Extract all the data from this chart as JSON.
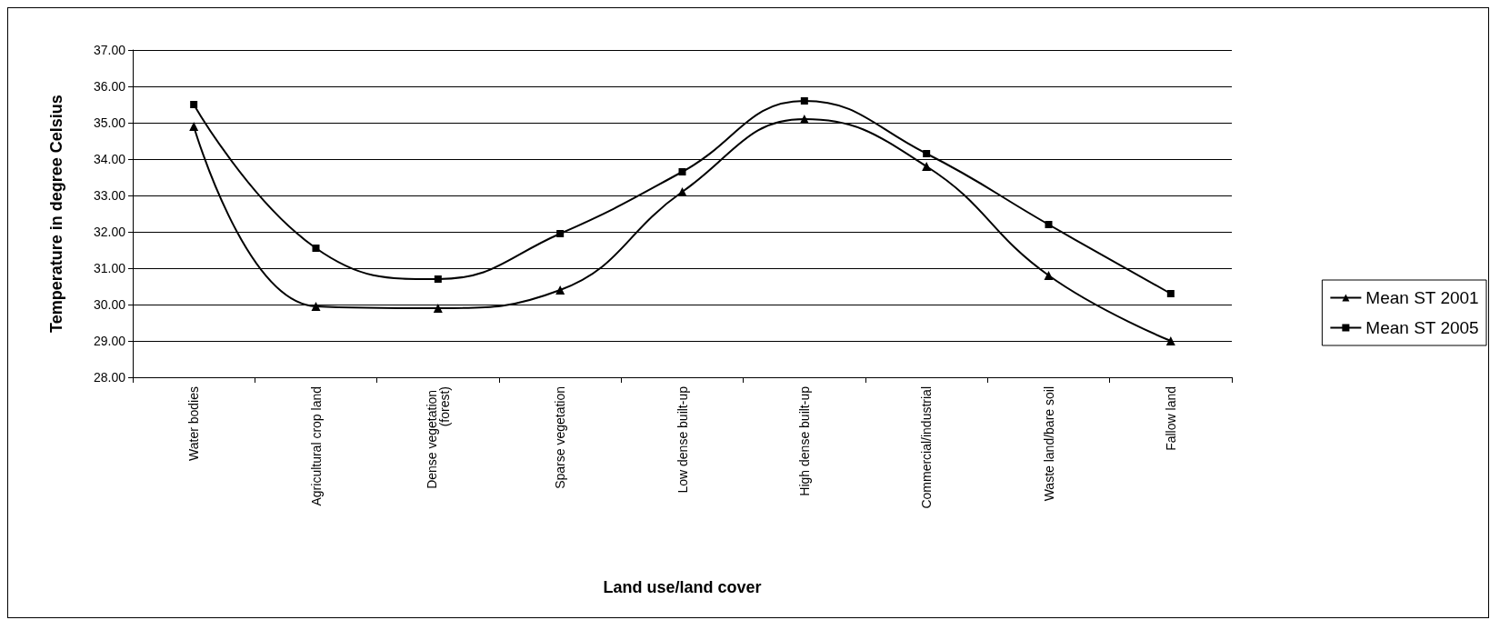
{
  "chart_data": {
    "type": "line",
    "xlabel": "Land use/land cover",
    "ylabel": "Temperature in degree Celsius",
    "categories": [
      "Water bodies",
      "Agricultural crop land",
      "Dense vegetation (forest)",
      "Sparse vegetation",
      "Low dense built-up",
      "High dense built-up",
      "Commercial/industrial",
      "Waste land/bare soil",
      "Fallow land"
    ],
    "series": [
      {
        "name": "Mean ST 2001",
        "color": "#000000",
        "marker": "triangle",
        "values": [
          34.9,
          29.95,
          29.9,
          30.4,
          33.1,
          35.1,
          33.8,
          30.8,
          29.0
        ]
      },
      {
        "name": "Mean ST 2005",
        "color": "#000000",
        "marker": "square",
        "values": [
          35.5,
          31.55,
          30.7,
          31.95,
          33.65,
          35.6,
          34.15,
          32.2,
          30.3
        ]
      }
    ],
    "ylim": [
      28,
      37
    ],
    "yticks": [
      {
        "value": 28,
        "label": "28.00"
      },
      {
        "value": 29,
        "label": "29.00"
      },
      {
        "value": 30,
        "label": "30.00"
      },
      {
        "value": 31,
        "label": "31.00"
      },
      {
        "value": 32,
        "label": "32.00"
      },
      {
        "value": 33,
        "label": "33.00"
      },
      {
        "value": 34,
        "label": "34.00"
      },
      {
        "value": 35,
        "label": "35.00"
      },
      {
        "value": 36,
        "label": "36.00"
      },
      {
        "value": 37,
        "label": "37.00"
      }
    ],
    "grid": "y",
    "legend": "right",
    "line_style": "solid"
  }
}
